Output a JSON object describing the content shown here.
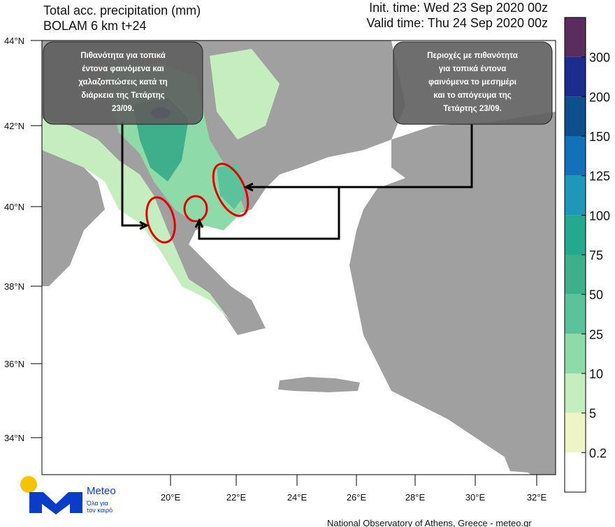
{
  "header": {
    "title": "Total acc. precipitation (mm)",
    "model": "BOLAM 6 km t+24",
    "init_time": "Init. time: Wed 23 Sep 2020 00z",
    "valid_time": "Valid time: Thu 24 Sep 2020 00z"
  },
  "lat_labels": [
    "44°N",
    "42°N",
    "40°N",
    "38°N",
    "36°N",
    "34°N"
  ],
  "lon_labels": [
    "20°E",
    "22°E",
    "24°E",
    "26°E",
    "28°E",
    "30°E",
    "32°E"
  ],
  "legend": {
    "labels": [
      "300",
      "200",
      "150",
      "125",
      "100",
      "75",
      "50",
      "25",
      "10",
      "5",
      "0.2"
    ],
    "colors": [
      "#5b2c5e",
      "#1b2b8e",
      "#0d4f8d",
      "#1371b9",
      "#1e97b8",
      "#22a98f",
      "#3fae8b",
      "#5cc29b",
      "#8fdaa9",
      "#c6edc0",
      "#eef4c6",
      "#ffffff"
    ]
  },
  "annotations": {
    "left": [
      "Πιθανότητα για τοπικά",
      "έντονα φαινόμενα και",
      "χαλαζοπτώσεις κατά τη",
      "διάρκεια της Τετάρτης",
      "23/09."
    ],
    "right": [
      "Περιοχές με πιθανότητα",
      "για τοπικά έντονα",
      "φαινόμενα  το μεσημέρι",
      "και το απόγευμα της",
      "Τετάρτης 23/09."
    ]
  },
  "logo": {
    "name": "Meteo",
    "tagline": [
      "Όλα για",
      "τον καιρό"
    ]
  },
  "footer": "National Observatory of Athens, Greece - meteo.gr"
}
